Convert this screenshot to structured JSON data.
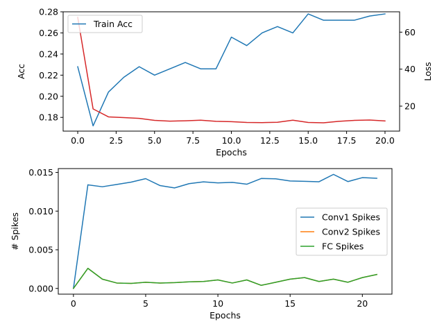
{
  "chart_data": [
    {
      "type": "line",
      "title": "",
      "xlabel": "Epochs",
      "ylabel": "Acc",
      "ylabel_right": "Loss",
      "grid": false,
      "legend_position": "top-left",
      "x": [
        0,
        1,
        2,
        3,
        4,
        5,
        6,
        7,
        8,
        9,
        10,
        11,
        12,
        13,
        14,
        15,
        16,
        17,
        18,
        19,
        20
      ],
      "xlim": [
        -0.95,
        20.95
      ],
      "xticks": [
        0.0,
        2.5,
        5.0,
        7.5,
        10.0,
        12.5,
        15.0,
        17.5,
        20.0
      ],
      "xtick_labels": [
        "0.0",
        "2.5",
        "5.0",
        "7.5",
        "10.0",
        "12.5",
        "15.0",
        "17.5",
        "20.0"
      ],
      "ylim": [
        0.167,
        0.28
      ],
      "yticks": [
        0.18,
        0.2,
        0.22,
        0.24,
        0.26,
        0.28
      ],
      "ytick_labels": [
        "0.18",
        "0.20",
        "0.22",
        "0.24",
        "0.26",
        "0.28"
      ],
      "ylim_right": [
        6.5,
        71
      ],
      "yticks_right": [
        20,
        40,
        60
      ],
      "ytick_labels_right": [
        "20",
        "40",
        "60"
      ],
      "series": [
        {
          "name": "Train Acc",
          "axis": "left",
          "color": "#1f77b4",
          "values": [
            0.228,
            0.172,
            0.204,
            0.218,
            0.228,
            0.22,
            0.226,
            0.232,
            0.226,
            0.226,
            0.256,
            0.248,
            0.26,
            0.266,
            0.26,
            0.278,
            0.272,
            0.272,
            0.272,
            0.276,
            0.278
          ]
        },
        {
          "name": "",
          "axis": "right",
          "color": "#d62728",
          "values": [
            68,
            18.5,
            14.2,
            13.8,
            13.4,
            12.3,
            11.9,
            12.1,
            12.4,
            11.8,
            11.6,
            11.2,
            11.1,
            11.3,
            12.4,
            11.2,
            11.0,
            11.8,
            12.3,
            12.5,
            12.0
          ]
        }
      ]
    },
    {
      "type": "line",
      "title": "",
      "xlabel": "Epochs",
      "ylabel": "# Spikes",
      "grid": false,
      "legend_position": "center-right",
      "x": [
        0,
        1,
        2,
        3,
        4,
        5,
        6,
        7,
        8,
        9,
        10,
        11,
        12,
        13,
        14,
        15,
        16,
        17,
        18,
        19,
        20,
        21
      ],
      "xlim": [
        -1.05,
        22.05
      ],
      "xticks": [
        0,
        5,
        10,
        15,
        20
      ],
      "xtick_labels": [
        "0",
        "5",
        "10",
        "15",
        "20"
      ],
      "ylim": [
        -0.00074,
        0.0155
      ],
      "yticks": [
        0.0,
        0.005,
        0.01,
        0.015
      ],
      "ytick_labels": [
        "0.000",
        "0.005",
        "0.010",
        "0.015"
      ],
      "series": [
        {
          "name": "Conv1 Spikes",
          "color": "#1f77b4",
          "values": [
            0.0,
            0.0134,
            0.01315,
            0.01345,
            0.01375,
            0.0142,
            0.0133,
            0.013,
            0.01355,
            0.01378,
            0.01365,
            0.01372,
            0.01348,
            0.01422,
            0.01418,
            0.0139,
            0.01385,
            0.0138,
            0.01475,
            0.01382,
            0.01433,
            0.01425
          ]
        },
        {
          "name": "Conv2 Spikes",
          "color": "#ff7f0e",
          "values": [
            0.0,
            0.0026,
            0.0012,
            0.0007,
            0.00065,
            0.0008,
            0.0007,
            0.00075,
            0.00085,
            0.0009,
            0.0011,
            0.0007,
            0.0011,
            0.0004,
            0.0008,
            0.0012,
            0.0014,
            0.0009,
            0.0012,
            0.0008,
            0.0014,
            0.0018
          ]
        },
        {
          "name": "FC Spikes",
          "color": "#2ca02c",
          "values": [
            0.0,
            0.0026,
            0.0012,
            0.0007,
            0.00065,
            0.0008,
            0.0007,
            0.00075,
            0.00085,
            0.0009,
            0.0011,
            0.0007,
            0.0011,
            0.0004,
            0.0008,
            0.0012,
            0.0014,
            0.0009,
            0.0012,
            0.0008,
            0.0014,
            0.0018
          ]
        }
      ]
    }
  ]
}
